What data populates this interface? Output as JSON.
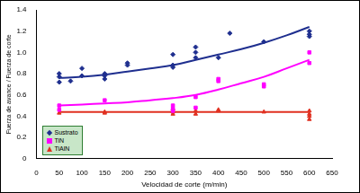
{
  "chart_data": {
    "type": "scatter",
    "x_label": "Velocidad de corte (m/min)",
    "y_label": "Fuerza de avance / Fuerza de corte",
    "xlim": [
      0,
      650
    ],
    "xticks": [
      0,
      50,
      100,
      150,
      200,
      250,
      300,
      350,
      400,
      450,
      500,
      550,
      600,
      650
    ],
    "ylim": [
      0,
      1.4
    ],
    "yticks": [
      0,
      0.2,
      0.4,
      0.6,
      0.8,
      1,
      1.2,
      1.4
    ],
    "grid": false,
    "legend": "lower left",
    "series": [
      {
        "name": "Sustrato",
        "color": "#1f2f8f",
        "marker": "diamond",
        "x": [
          50,
          50,
          50,
          75,
          100,
          100,
          150,
          150,
          150,
          200,
          200,
          300,
          300,
          300,
          350,
          350,
          350,
          400,
          425,
          500,
          600,
          600,
          600
        ],
        "values": [
          0.77,
          0.72,
          0.8,
          0.73,
          0.85,
          0.78,
          0.8,
          0.78,
          0.75,
          0.88,
          0.9,
          0.98,
          0.88,
          0.86,
          1.05,
          1.0,
          0.95,
          0.95,
          1.18,
          1.1,
          1.2,
          1.17,
          1.15
        ],
        "trend": {
          "x": [
            50,
            100,
            150,
            200,
            250,
            300,
            350,
            400,
            450,
            500,
            550,
            600
          ],
          "values": [
            0.76,
            0.77,
            0.79,
            0.82,
            0.85,
            0.88,
            0.93,
            0.98,
            1.03,
            1.09,
            1.16,
            1.24
          ]
        }
      },
      {
        "name": "TiN",
        "color": "#ff00ff",
        "marker": "square",
        "x": [
          50,
          50,
          150,
          300,
          300,
          300,
          350,
          350,
          400,
          400,
          500,
          500,
          600,
          600
        ],
        "values": [
          0.5,
          0.46,
          0.55,
          0.5,
          0.47,
          0.45,
          0.58,
          0.48,
          0.75,
          0.73,
          0.68,
          0.7,
          1.0,
          0.9
        ],
        "trend": {
          "x": [
            50,
            100,
            150,
            200,
            250,
            300,
            350,
            400,
            450,
            500,
            550,
            600
          ],
          "values": [
            0.5,
            0.51,
            0.52,
            0.53,
            0.55,
            0.57,
            0.6,
            0.65,
            0.71,
            0.77,
            0.85,
            0.93
          ]
        }
      },
      {
        "name": "TiAlN",
        "color": "#e03020",
        "marker": "triangle",
        "x": [
          50,
          150,
          150,
          300,
          300,
          300,
          350,
          350,
          400,
          400,
          500,
          600,
          600,
          600,
          600
        ],
        "values": [
          0.43,
          0.44,
          0.43,
          0.47,
          0.44,
          0.42,
          0.45,
          0.42,
          0.46,
          0.45,
          0.44,
          0.45,
          0.4,
          0.37,
          0.42
        ],
        "trend": {
          "x": [
            50,
            100,
            150,
            200,
            250,
            300,
            350,
            400,
            450,
            500,
            550,
            600
          ],
          "values": [
            0.44,
            0.44,
            0.44,
            0.44,
            0.44,
            0.44,
            0.44,
            0.44,
            0.44,
            0.44,
            0.44,
            0.44
          ]
        }
      }
    ]
  }
}
